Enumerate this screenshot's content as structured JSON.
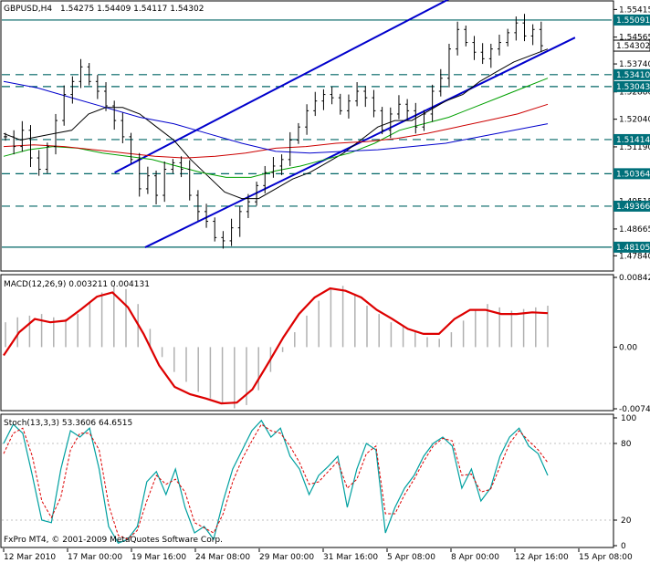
{
  "main": {
    "symbol": "GBPUSD,H4",
    "ohlc": "1.54275 1.54409 1.54117 1.54302",
    "price_min": 1.474,
    "price_max": 1.5565,
    "tick_labels": [
      "1.55415",
      "1.54565",
      "1.53740",
      "1.52880",
      "1.52040",
      "1.51190",
      "1.50365",
      "1.49515",
      "1.48665",
      "1.47840"
    ],
    "levels": [
      {
        "value": 1.55091,
        "label": "1.55091",
        "style": "solid"
      },
      {
        "value": 1.54302,
        "label": "1.54302",
        "style": "current"
      },
      {
        "value": 1.5341,
        "label": "1.53410",
        "style": "dashed"
      },
      {
        "value": 1.53043,
        "label": "1.53043",
        "style": "dashed"
      },
      {
        "value": 1.51414,
        "label": "1.51414",
        "style": "dashed"
      },
      {
        "value": 1.50364,
        "label": "1.50364",
        "style": "dashed"
      },
      {
        "value": 1.49366,
        "label": "1.49366",
        "style": "dashed"
      },
      {
        "value": 1.48105,
        "label": "1.48105",
        "style": "solid"
      }
    ],
    "channel_upper": [
      [
        0.185,
        1.504
      ],
      [
        0.74,
        1.558
      ]
    ],
    "channel_lower": [
      [
        0.235,
        1.481
      ],
      [
        0.94,
        1.5455
      ]
    ],
    "closes": [
      1.515,
      1.512,
      1.517,
      1.5085,
      1.505,
      1.512,
      1.52,
      1.528,
      1.532,
      1.5365,
      1.532,
      1.529,
      1.5245,
      1.52,
      1.515,
      1.508,
      1.499,
      1.503,
      1.497,
      1.505,
      1.507,
      1.505,
      1.497,
      1.492,
      1.489,
      1.484,
      1.483,
      1.487,
      1.492,
      1.495,
      1.5,
      1.504,
      1.506,
      1.508,
      1.514,
      1.518,
      1.523,
      1.526,
      1.528,
      1.527,
      1.523,
      1.526,
      1.529,
      1.527,
      1.523,
      1.517,
      1.522,
      1.525,
      1.523,
      1.518,
      1.522,
      1.529,
      1.533,
      1.542,
      1.548,
      1.544,
      1.541,
      1.539,
      1.542,
      1.544,
      1.547,
      1.55,
      1.546,
      1.548,
      1.543
    ],
    "lines": [
      {
        "color": "#000000",
        "values": [
          1.516,
          1.514,
          1.515,
          1.516,
          1.517,
          1.522,
          1.524,
          1.524,
          1.522,
          1.518,
          1.514,
          1.508,
          1.503,
          1.498,
          1.496,
          1.496,
          1.499,
          1.502,
          1.504,
          1.507,
          1.51,
          1.514,
          1.518,
          1.52,
          1.52,
          1.523,
          1.526,
          1.528,
          1.532,
          1.535,
          1.538,
          1.54,
          1.542
        ]
      },
      {
        "color": "#00a000",
        "values": [
          1.509,
          1.511,
          1.512,
          1.5115,
          1.51,
          1.509,
          1.508,
          1.506,
          1.504,
          1.5025,
          1.5025,
          1.5045,
          1.506,
          1.508,
          1.51,
          1.513,
          1.517,
          1.519,
          1.521,
          1.524,
          1.527,
          1.53,
          1.533
        ]
      },
      {
        "color": "#cc0000",
        "values": [
          1.512,
          1.5125,
          1.512,
          1.511,
          1.51,
          1.509,
          1.5085,
          1.509,
          1.51,
          1.5115,
          1.512,
          1.513,
          1.5135,
          1.5145,
          1.516,
          1.518,
          1.52,
          1.522,
          1.525
        ]
      },
      {
        "color": "#0000cc",
        "values": [
          1.532,
          1.53,
          1.527,
          1.524,
          1.521,
          1.519,
          1.516,
          1.513,
          1.5105,
          1.51,
          1.5105,
          1.511,
          1.512,
          1.513,
          1.515,
          1.517,
          1.519
        ]
      }
    ]
  },
  "macd": {
    "label": "MACD(12,26,9) 0.003211 0.004131",
    "tick_labels": [
      "0.008420",
      "0.00",
      "-0.007455"
    ],
    "min": -0.00745,
    "max": 0.00842,
    "histogram": [
      0.003,
      0.0036,
      0.0038,
      0.004,
      0.0036,
      0.0034,
      0.004,
      0.0055,
      0.0066,
      0.0074,
      0.007,
      0.0052,
      0.0022,
      -0.0012,
      -0.003,
      -0.0042,
      -0.0054,
      -0.0062,
      -0.0068,
      -0.0074,
      -0.007,
      -0.0052,
      -0.003,
      -0.0006,
      0.0018,
      0.0038,
      0.0056,
      0.007,
      0.0074,
      0.0064,
      0.005,
      0.004,
      0.003,
      0.0026,
      0.0018,
      0.0012,
      0.001,
      0.0018,
      0.0032,
      0.0044,
      0.0052,
      0.0048,
      0.0044,
      0.0046,
      0.0048,
      0.005
    ],
    "signal": [
      -0.001,
      0.0018,
      0.0034,
      0.003,
      0.0032,
      0.0046,
      0.0061,
      0.0066,
      0.0048,
      0.0016,
      -0.0022,
      -0.0048,
      -0.0057,
      -0.0062,
      -0.0068,
      -0.0067,
      -0.0051,
      -0.002,
      0.0012,
      0.004,
      0.006,
      0.0071,
      0.0068,
      0.006,
      0.0045,
      0.0034,
      0.0022,
      0.0016,
      0.0016,
      0.0034,
      0.0045,
      0.0045,
      0.004,
      0.004,
      0.0042,
      0.0041
    ]
  },
  "stoch": {
    "label": "Stoch(13,3,3) 53.3606 64.6515",
    "tick_labels": [
      "100",
      "80",
      "20",
      "0"
    ],
    "main_line": [
      80,
      95,
      88,
      55,
      20,
      18,
      60,
      90,
      85,
      92,
      60,
      15,
      2,
      5,
      15,
      50,
      58,
      40,
      60,
      30,
      10,
      15,
      5,
      35,
      60,
      75,
      90,
      98,
      85,
      92,
      70,
      60,
      40,
      55,
      62,
      70,
      30,
      60,
      80,
      75,
      10,
      30,
      45,
      55,
      70,
      80,
      85,
      78,
      45,
      60,
      35,
      45,
      70,
      85,
      92,
      78,
      72,
      55
    ],
    "signal_line": [
      72,
      88,
      92,
      70,
      35,
      22,
      38,
      75,
      88,
      88,
      75,
      32,
      8,
      5,
      12,
      35,
      55,
      48,
      52,
      42,
      18,
      14,
      10,
      25,
      50,
      68,
      82,
      95,
      90,
      88,
      78,
      65,
      48,
      50,
      58,
      66,
      45,
      52,
      72,
      78,
      25,
      25,
      40,
      52,
      66,
      78,
      84,
      82,
      55,
      56,
      42,
      44,
      62,
      80,
      90,
      82,
      75,
      65
    ]
  },
  "x_axis": {
    "labels": [
      "12 Mar 2010",
      "17 Mar 00:00",
      "19 Mar 16:00",
      "24 Mar 08:00",
      "29 Mar 00:00",
      "31 Mar 16:00",
      "5 Apr 08:00",
      "8 Apr 00:00",
      "12 Apr 16:00",
      "15 Apr 08:00"
    ]
  },
  "copyright": "FxPro MT4, © 2001-2009 MetaQuotes Software Corp.",
  "colors": {
    "channel": "#0000cc",
    "level_line": "#006666",
    "macd_signal": "#dd0000",
    "histogram": "#b0b0b0",
    "stoch_main": "#00a0a0",
    "stoch_signal": "#dd0000",
    "label_bg": "#00707a"
  }
}
